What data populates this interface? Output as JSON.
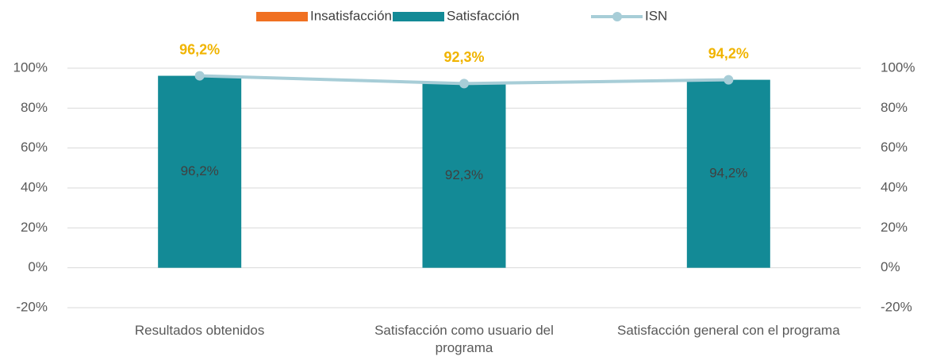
{
  "chart_data": {
    "type": "bar",
    "categories": [
      "Resultados obtenidos",
      "Satisfacción como usuario del programa",
      "Satisfacción general con el programa"
    ],
    "series": [
      {
        "name": "Insatisfacción",
        "color": "#f07021",
        "values": [
          0,
          0,
          0
        ]
      },
      {
        "name": "Satisfacción",
        "color": "#138a96",
        "values": [
          96.2,
          92.3,
          94.2
        ],
        "value_labels": [
          "96,2%",
          "92,3%",
          "94,2%"
        ]
      },
      {
        "name": "ISN",
        "type": "line",
        "axis": "y2",
        "color": "#a7cdd7",
        "label_color": "#f0b400",
        "values": [
          96.2,
          92.3,
          94.2
        ],
        "value_labels": [
          "96,2%",
          "92,3%",
          "94,2%"
        ]
      }
    ],
    "ylim": [
      -20,
      100
    ],
    "yticks": [
      {
        "value": -20,
        "label": "-20%"
      },
      {
        "value": 0,
        "label": "0%"
      },
      {
        "value": 20,
        "label": "20%"
      },
      {
        "value": 40,
        "label": "40%"
      },
      {
        "value": 60,
        "label": "60%"
      },
      {
        "value": 80,
        "label": "80%"
      },
      {
        "value": 100,
        "label": "100%"
      }
    ],
    "y2lim": [
      -20,
      100
    ],
    "y2ticks": [
      {
        "value": -20,
        "label": "-20%"
      },
      {
        "value": 0,
        "label": "0%"
      },
      {
        "value": 20,
        "label": "20%"
      },
      {
        "value": 40,
        "label": "40%"
      },
      {
        "value": 60,
        "label": "60%"
      },
      {
        "value": 80,
        "label": "80%"
      },
      {
        "value": 100,
        "label": "100%"
      }
    ],
    "grid": true,
    "legend": "top"
  }
}
